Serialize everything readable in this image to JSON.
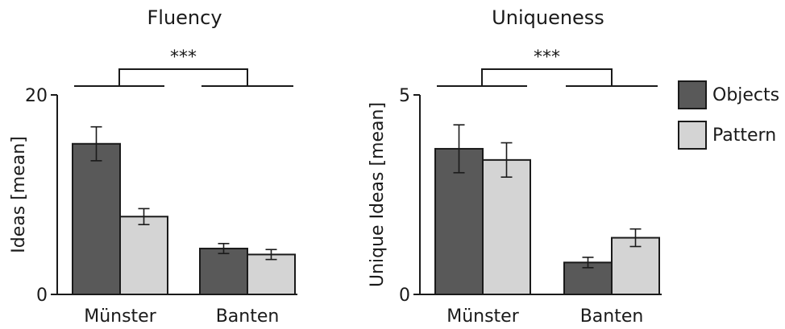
{
  "colors": {
    "objects": "#595959",
    "pattern": "#d4d4d4",
    "stroke": "#1a1a1a"
  },
  "legend": {
    "position": "right",
    "items": [
      {
        "label": "Objects",
        "color": "#595959"
      },
      {
        "label": "Pattern",
        "color": "#d4d4d4"
      }
    ]
  },
  "chart_data": [
    {
      "type": "bar",
      "title": "Fluency",
      "xlabel": "",
      "ylabel": "Ideas [mean]",
      "ylim": [
        0,
        20
      ],
      "yticks": [
        "0",
        "20"
      ],
      "categories": [
        "Münster",
        "Banten"
      ],
      "series": [
        {
          "name": "Objects",
          "values": [
            15.1,
            4.6
          ],
          "errors": [
            1.7,
            0.5
          ]
        },
        {
          "name": "Pattern",
          "values": [
            7.8,
            4.0
          ],
          "errors": [
            0.8,
            0.5
          ]
        }
      ],
      "significance": "***"
    },
    {
      "type": "bar",
      "title": "Uniqueness",
      "xlabel": "",
      "ylabel": "Unique Ideas [mean]",
      "ylim": [
        0,
        5
      ],
      "yticks": [
        "0",
        "5"
      ],
      "categories": [
        "Münster",
        "Banten"
      ],
      "series": [
        {
          "name": "Objects",
          "values": [
            3.65,
            0.8
          ],
          "errors": [
            0.6,
            0.13
          ]
        },
        {
          "name": "Pattern",
          "values": [
            3.37,
            1.42
          ],
          "errors": [
            0.43,
            0.22
          ]
        }
      ],
      "significance": "***"
    }
  ]
}
